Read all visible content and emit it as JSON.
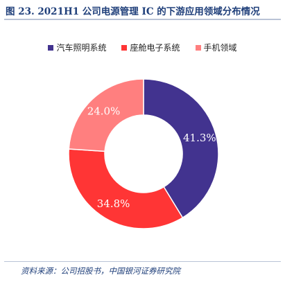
{
  "title": "图 23. 2021H1 公司电源管理 IC 的下游应用领域分布情况",
  "source": "资料来源：公司招股书，中国银河证券研究院",
  "chart_data": {
    "type": "pie",
    "categories": [
      "汽车照明系统",
      "座舱电子系统",
      "手机领域"
    ],
    "values": [
      41.3,
      34.8,
      24.0
    ],
    "value_labels": [
      "41.3%",
      "34.8%",
      "24.0%"
    ],
    "colors": [
      "#42338f",
      "#ff3535",
      "#ff7f7f"
    ],
    "donut": true,
    "legend_position": "top"
  }
}
